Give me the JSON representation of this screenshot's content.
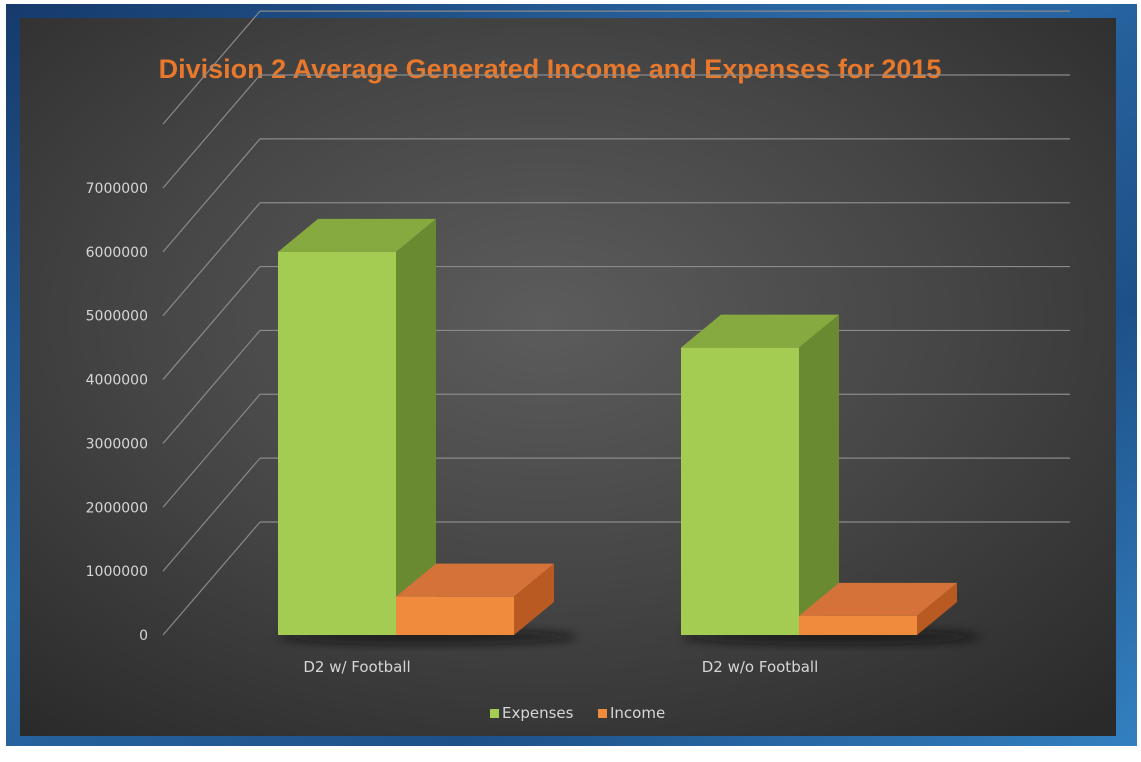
{
  "colors": {
    "expenses_front": "#a4cc52",
    "expenses_side": "#6a8a32",
    "expenses_top": "#86aa40",
    "income_front": "#f08a3c",
    "income_side": "#b85a22",
    "income_top": "#d4723a",
    "title": "#e8782c",
    "grid": "#8a8a8a"
  },
  "chart_data": {
    "type": "bar",
    "title": "Division 2 Average Generated Income and Expenses for 2015",
    "categories": [
      "D2 w/ Football",
      "D2 w/o Football"
    ],
    "series": [
      {
        "name": "Expenses",
        "values": [
          6000000,
          4500000
        ]
      },
      {
        "name": "Income",
        "values": [
          600000,
          300000
        ]
      }
    ],
    "yticks": [
      "0",
      "1000000",
      "2000000",
      "3000000",
      "4000000",
      "5000000",
      "6000000",
      "7000000"
    ],
    "ylim": [
      0,
      7000000
    ],
    "xlabel": "",
    "ylabel": "",
    "grid": true,
    "legend_position": "bottom",
    "style": "3d-clustered-column"
  }
}
